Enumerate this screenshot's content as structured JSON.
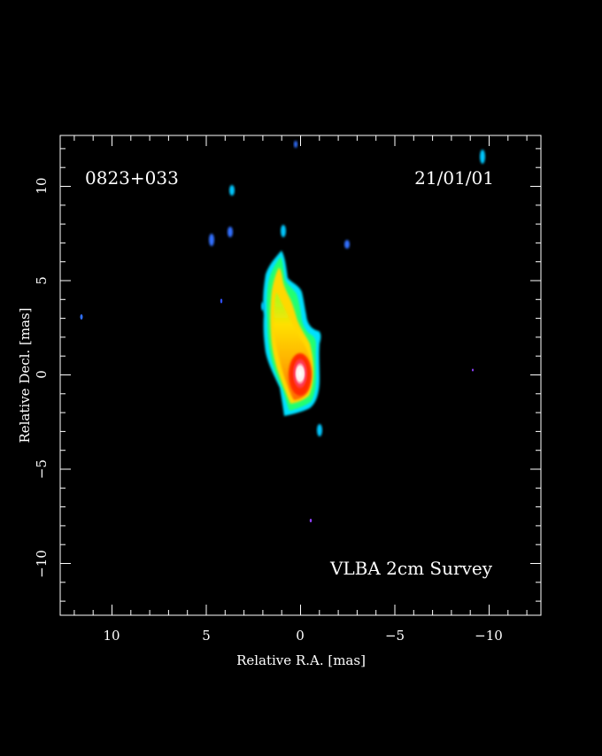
{
  "image": {
    "source_name": "0823+033",
    "epoch": "21/01/01",
    "survey": "VLBA 2cm Survey",
    "x_axis_label": "Relative R.A. [mas]",
    "y_axis_label": "Relative Decl. [mas]",
    "x_range_mas": [
      13,
      -13
    ],
    "y_range_mas": [
      -13,
      13
    ],
    "x_ticks": [
      "10",
      "5",
      "0",
      "−5",
      "−10"
    ],
    "y_ticks": [
      "−10",
      "−5",
      "0",
      "5",
      "10"
    ],
    "colormap": "spectral",
    "colors": {
      "background": "#000000",
      "frame": "#ffffff",
      "text": "#ffffff",
      "peak": "#ffffff",
      "high": "#ff2a00",
      "mid": "#ffcc00",
      "low": "#00ff80",
      "faint": "#00e0ff",
      "noise": "#1a3cff"
    }
  }
}
